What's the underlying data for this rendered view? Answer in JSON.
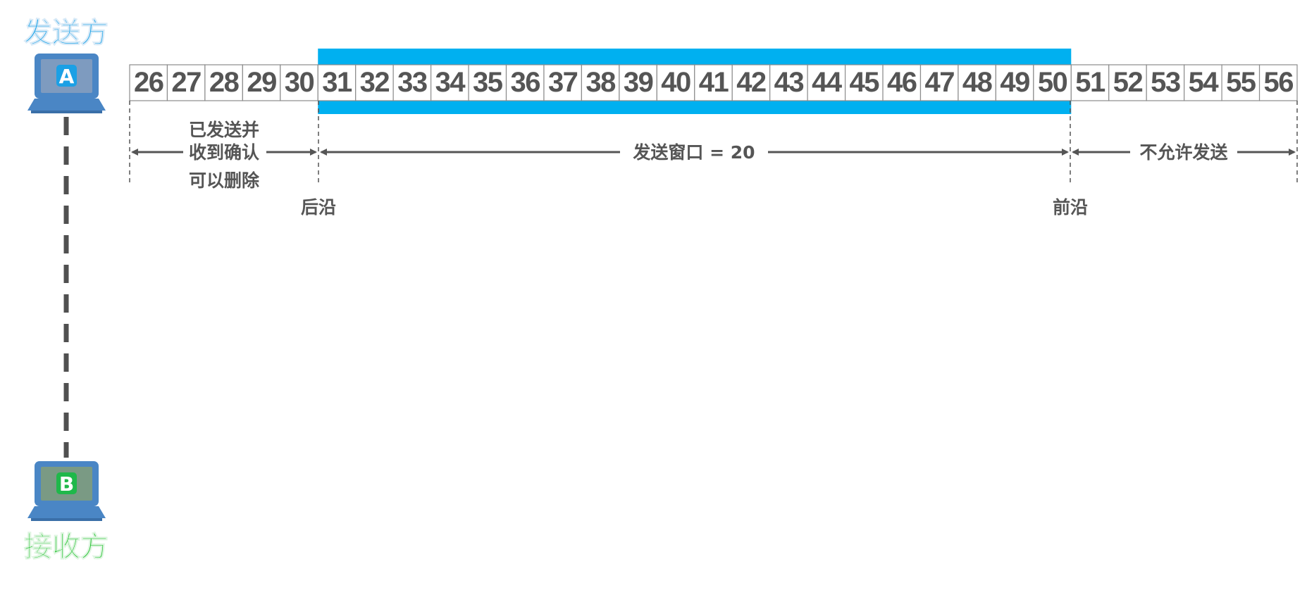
{
  "sender": {
    "label": "发送方",
    "host": "A",
    "label_color": "#1aa3e8"
  },
  "receiver": {
    "label": "接收方",
    "host": "B",
    "label_color": "#22c22e"
  },
  "sequence": {
    "numbers": [
      26,
      27,
      28,
      29,
      30,
      31,
      32,
      33,
      34,
      35,
      36,
      37,
      38,
      39,
      40,
      41,
      42,
      43,
      44,
      45,
      46,
      47,
      48,
      49,
      50,
      51,
      52,
      53,
      54,
      55,
      56
    ],
    "window_start": 31,
    "window_end": 50,
    "window_color": "#00b0f0",
    "cell_border_color": "#8c8c8c",
    "number_color": "#555555"
  },
  "annotations": {
    "acked_lines": [
      "已发送并",
      "收到确认",
      "可以删除"
    ],
    "window_label": "发送窗口 = 20",
    "not_allowed_label": "不允许发送",
    "trailing_edge": "后沿",
    "leading_edge": "前沿"
  },
  "colors": {
    "laptop_body": "#4a86c5",
    "laptop_screen_a": "#7e9bbf",
    "laptop_screen_b": "#7a9a84",
    "link_line": "#505050",
    "annotation": "#555555"
  }
}
